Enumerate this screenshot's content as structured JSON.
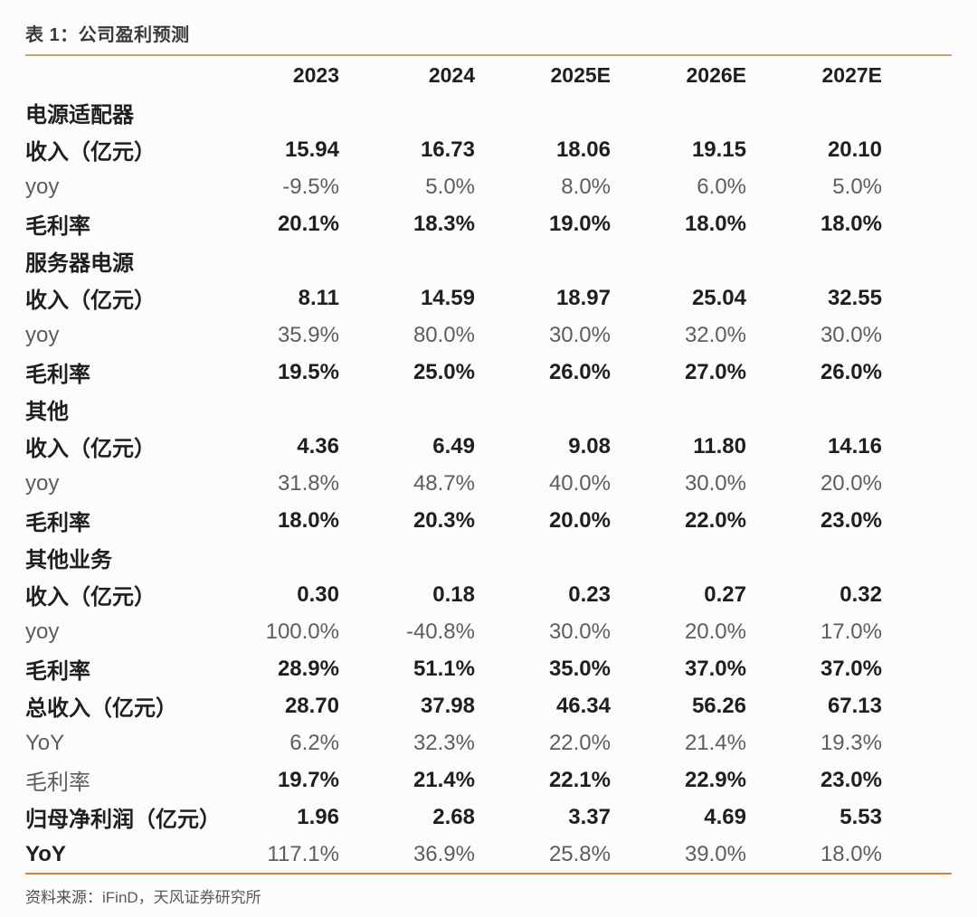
{
  "title": "表 1：公司盈利预测",
  "colors": {
    "rule_top": "#C9A368",
    "rule_bottom": "#D5823E",
    "text_dark": "#1f1f1f",
    "text_gray": "#5d5d5d",
    "background": "#fcfcfc"
  },
  "table": {
    "header": [
      "2023",
      "2024",
      "2025E",
      "2026E",
      "2027E"
    ],
    "rows": [
      {
        "type": "section",
        "label": "电源适配器",
        "values": [
          "",
          "",
          "",
          "",
          ""
        ]
      },
      {
        "type": "bold",
        "label": "收入（亿元）",
        "values": [
          "15.94",
          "16.73",
          "18.06",
          "19.15",
          "20.10"
        ]
      },
      {
        "type": "gray",
        "label": "yoy",
        "values": [
          "-9.5%",
          "5.0%",
          "8.0%",
          "6.0%",
          "5.0%"
        ]
      },
      {
        "type": "bold",
        "label": "毛利率",
        "values": [
          "20.1%",
          "18.3%",
          "19.0%",
          "18.0%",
          "18.0%"
        ]
      },
      {
        "type": "section",
        "label": "服务器电源",
        "values": [
          "",
          "",
          "",
          "",
          ""
        ]
      },
      {
        "type": "bold",
        "label": "收入（亿元）",
        "values": [
          "8.11",
          "14.59",
          "18.97",
          "25.04",
          "32.55"
        ]
      },
      {
        "type": "gray",
        "label": "yoy",
        "values": [
          "35.9%",
          "80.0%",
          "30.0%",
          "32.0%",
          "30.0%"
        ]
      },
      {
        "type": "bold",
        "label": "毛利率",
        "values": [
          "19.5%",
          "25.0%",
          "26.0%",
          "27.0%",
          "26.0%"
        ]
      },
      {
        "type": "section",
        "label": "其他",
        "values": [
          "",
          "",
          "",
          "",
          ""
        ]
      },
      {
        "type": "bold",
        "label": "收入（亿元）",
        "values": [
          "4.36",
          "6.49",
          "9.08",
          "11.80",
          "14.16"
        ]
      },
      {
        "type": "gray",
        "label": "yoy",
        "values": [
          "31.8%",
          "48.7%",
          "40.0%",
          "30.0%",
          "20.0%"
        ]
      },
      {
        "type": "bold",
        "label": "毛利率",
        "values": [
          "18.0%",
          "20.3%",
          "20.0%",
          "22.0%",
          "23.0%"
        ]
      },
      {
        "type": "section",
        "label": "其他业务",
        "values": [
          "",
          "",
          "",
          "",
          ""
        ]
      },
      {
        "type": "bold",
        "label": "收入（亿元）",
        "values": [
          "0.30",
          "0.18",
          "0.23",
          "0.27",
          "0.32"
        ]
      },
      {
        "type": "gray",
        "label": "yoy",
        "values": [
          "100.0%",
          "-40.8%",
          "30.0%",
          "20.0%",
          "17.0%"
        ]
      },
      {
        "type": "bold",
        "label": "毛利率",
        "values": [
          "28.9%",
          "51.1%",
          "35.0%",
          "37.0%",
          "37.0%"
        ]
      },
      {
        "type": "bold",
        "label": "总收入（亿元）",
        "values": [
          "28.70",
          "37.98",
          "46.34",
          "56.26",
          "67.13"
        ]
      },
      {
        "type": "gray",
        "label": "YoY",
        "values": [
          "6.2%",
          "32.3%",
          "22.0%",
          "21.4%",
          "19.3%"
        ]
      },
      {
        "type": "gray_label_bold_values",
        "label": "毛利率",
        "values": [
          "19.7%",
          "21.4%",
          "22.1%",
          "22.9%",
          "23.0%"
        ]
      },
      {
        "type": "bold",
        "label": "归母净利润（亿元）",
        "values": [
          "1.96",
          "2.68",
          "3.37",
          "4.69",
          "5.53"
        ]
      },
      {
        "type": "bold_label_gray_values",
        "label": "YoY",
        "values": [
          "117.1%",
          "36.9%",
          "25.8%",
          "39.0%",
          "18.0%"
        ]
      }
    ]
  },
  "footer": {
    "source_label": "资料来源：",
    "source_text": "iFinD，天风证券研究所"
  }
}
